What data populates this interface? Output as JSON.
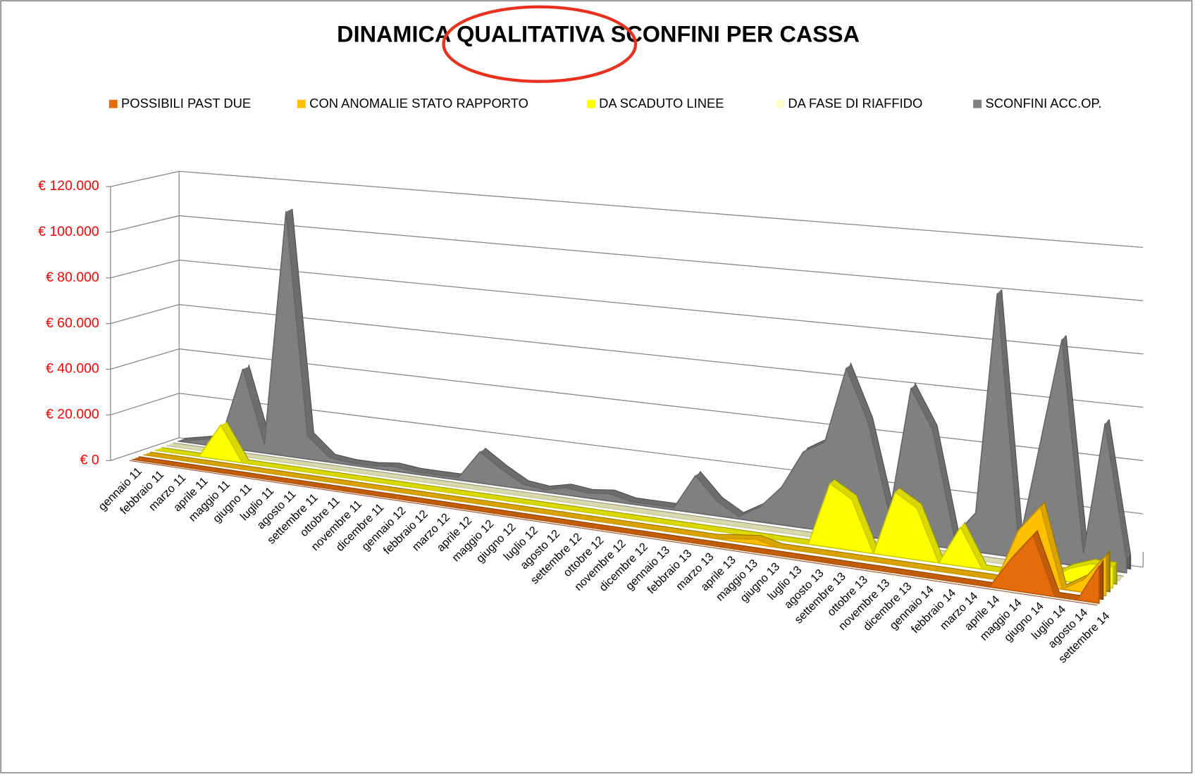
{
  "chart_data": {
    "type": "area3d",
    "title": "DINAMICA QUALITATIVA SCONFINI PER CASSA",
    "categories": [
      "gennaio 11",
      "febbraio 11",
      "marzo 11",
      "aprile 11",
      "maggio 11",
      "giugno 11",
      "luglio 11",
      "agosto 11",
      "settembre 11",
      "ottobre 11",
      "novembre 11",
      "dicembre 11",
      "gennaio 12",
      "febbraio 12",
      "marzo 12",
      "aprile 12",
      "maggio 12",
      "giugno 12",
      "luglio 12",
      "agosto 12",
      "settembre 12",
      "ottobre 12",
      "novembre 12",
      "dicembre 12",
      "gennaio 13",
      "febbraio 13",
      "marzo 13",
      "aprile 13",
      "maggio 13",
      "giugno 13",
      "luglio 13",
      "agosto 13",
      "settembre 13",
      "ottobre 13",
      "novembre 13",
      "dicembre 13",
      "gennaio 14",
      "febbraio 14",
      "marzo 14",
      "aprile 14",
      "maggio 14",
      "giugno 14",
      "luglio 14",
      "agosto 14",
      "settembre 14"
    ],
    "series": [
      {
        "name": "POSSIBILI PAST DUE",
        "color": "#e46c0a",
        "values": [
          0,
          0,
          0,
          0,
          0,
          0,
          0,
          0,
          0,
          0,
          0,
          0,
          0,
          0,
          0,
          0,
          0,
          0,
          0,
          0,
          0,
          0,
          0,
          0,
          0,
          0,
          0,
          0,
          0,
          0,
          0,
          0,
          0,
          0,
          0,
          0,
          0,
          0,
          0,
          0,
          12000,
          22000,
          0,
          0,
          14000
        ]
      },
      {
        "name": "CON ANOMALIE STATO RAPPORTO",
        "color": "#ffc000",
        "values": [
          0,
          0,
          0,
          0,
          0,
          0,
          0,
          0,
          0,
          0,
          0,
          0,
          0,
          0,
          0,
          0,
          0,
          0,
          0,
          0,
          0,
          0,
          0,
          0,
          0,
          0,
          0,
          1000,
          2000,
          0,
          0,
          0,
          0,
          0,
          0,
          0,
          0,
          0,
          0,
          0,
          20000,
          30000,
          0,
          5000,
          15000
        ]
      },
      {
        "name": "DA SCADUTO LINEE",
        "color": "#ffff00",
        "values": [
          0,
          0,
          0,
          15000,
          0,
          0,
          0,
          0,
          0,
          0,
          0,
          0,
          0,
          0,
          0,
          0,
          0,
          0,
          0,
          0,
          0,
          0,
          0,
          0,
          0,
          0,
          0,
          0,
          0,
          0,
          0,
          25000,
          20000,
          0,
          25000,
          20000,
          0,
          15000,
          0,
          0,
          0,
          0,
          5000,
          8000,
          8000
        ]
      },
      {
        "name": "DA FASE DI RIAFFIDO",
        "color": "#ffffcc",
        "values": [
          0,
          0,
          0,
          0,
          0,
          0,
          0,
          0,
          0,
          0,
          0,
          0,
          0,
          0,
          0,
          0,
          0,
          0,
          0,
          0,
          0,
          0,
          0,
          0,
          0,
          0,
          0,
          0,
          0,
          0,
          0,
          0,
          0,
          0,
          0,
          0,
          0,
          0,
          0,
          0,
          0,
          0,
          0,
          0,
          0
        ]
      },
      {
        "name": "SCONFINI ACC.OP.",
        "color": "#808080",
        "values": [
          0,
          2000,
          4000,
          35000,
          4000,
          105000,
          10000,
          2000,
          1000,
          1000,
          2000,
          1000,
          1000,
          1000,
          13000,
          7000,
          2000,
          1000,
          3000,
          2000,
          3000,
          1000,
          1000,
          1000,
          15000,
          6000,
          1000,
          6000,
          15000,
          30000,
          35000,
          65000,
          45000,
          10000,
          60000,
          45000,
          5000,
          15000,
          100000,
          5000,
          45000,
          85000,
          5000,
          55000,
          5000
        ]
      }
    ],
    "ylim": [
      0,
      120000
    ],
    "yticks": [
      {
        "value": 0,
        "label": "€ 0"
      },
      {
        "value": 20000,
        "label": "€ 20.000"
      },
      {
        "value": 40000,
        "label": "€ 40.000"
      },
      {
        "value": 60000,
        "label": "€ 60.000"
      },
      {
        "value": 80000,
        "label": "€ 80.000"
      },
      {
        "value": 100000,
        "label": "€ 100.000"
      },
      {
        "value": 120000,
        "label": "€ 120.000"
      }
    ],
    "ytick_color": "#ff0000",
    "grid": true,
    "legend": "top"
  }
}
